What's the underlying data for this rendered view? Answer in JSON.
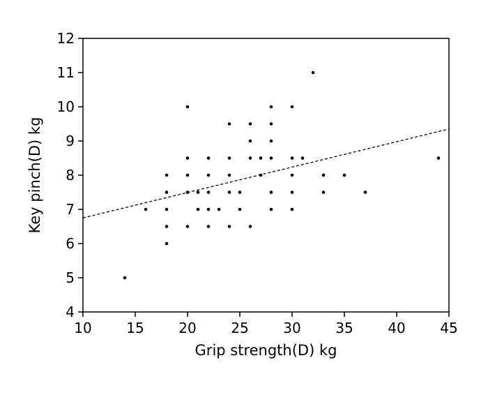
{
  "chart_data": {
    "type": "scatter",
    "title": "",
    "xlabel": "Grip strength(D) kg",
    "ylabel": "Key pinch(D) kg",
    "xlim": [
      10,
      45
    ],
    "ylim": [
      4,
      12
    ],
    "xticks": [
      10,
      15,
      20,
      25,
      30,
      35,
      40,
      45
    ],
    "yticks": [
      4,
      5,
      6,
      7,
      8,
      9,
      10,
      11,
      12
    ],
    "grid": false,
    "legend": "none",
    "points": [
      [
        14,
        5
      ],
      [
        16,
        7
      ],
      [
        18,
        6
      ],
      [
        18,
        6.5
      ],
      [
        18,
        7
      ],
      [
        18,
        7.5
      ],
      [
        18,
        8
      ],
      [
        20,
        6.5
      ],
      [
        20,
        7.5
      ],
      [
        20,
        8
      ],
      [
        20,
        8.5
      ],
      [
        20,
        10
      ],
      [
        21,
        7
      ],
      [
        21,
        7.5
      ],
      [
        22,
        6.5
      ],
      [
        22,
        7
      ],
      [
        22,
        7.5
      ],
      [
        22,
        8
      ],
      [
        22,
        8.5
      ],
      [
        23,
        7
      ],
      [
        24,
        6.5
      ],
      [
        24,
        7.5
      ],
      [
        24,
        8
      ],
      [
        24,
        8.5
      ],
      [
        24,
        9.5
      ],
      [
        25,
        7
      ],
      [
        25,
        7.5
      ],
      [
        26,
        6.5
      ],
      [
        26,
        8.5
      ],
      [
        26,
        9
      ],
      [
        26,
        9.5
      ],
      [
        27,
        8
      ],
      [
        27,
        8.5
      ],
      [
        28,
        7
      ],
      [
        28,
        7.5
      ],
      [
        28,
        8.5
      ],
      [
        28,
        9
      ],
      [
        28,
        9.5
      ],
      [
        28,
        10
      ],
      [
        30,
        7
      ],
      [
        30,
        7.5
      ],
      [
        30,
        8
      ],
      [
        30,
        8.5
      ],
      [
        30,
        10
      ],
      [
        31,
        8.5
      ],
      [
        32,
        11
      ],
      [
        33,
        7.5
      ],
      [
        33,
        8
      ],
      [
        35,
        8
      ],
      [
        37,
        7.5
      ],
      [
        44,
        8.5
      ]
    ],
    "trendline": {
      "style": "dashed",
      "x": [
        10,
        45
      ],
      "y": [
        6.75,
        9.35
      ]
    }
  }
}
